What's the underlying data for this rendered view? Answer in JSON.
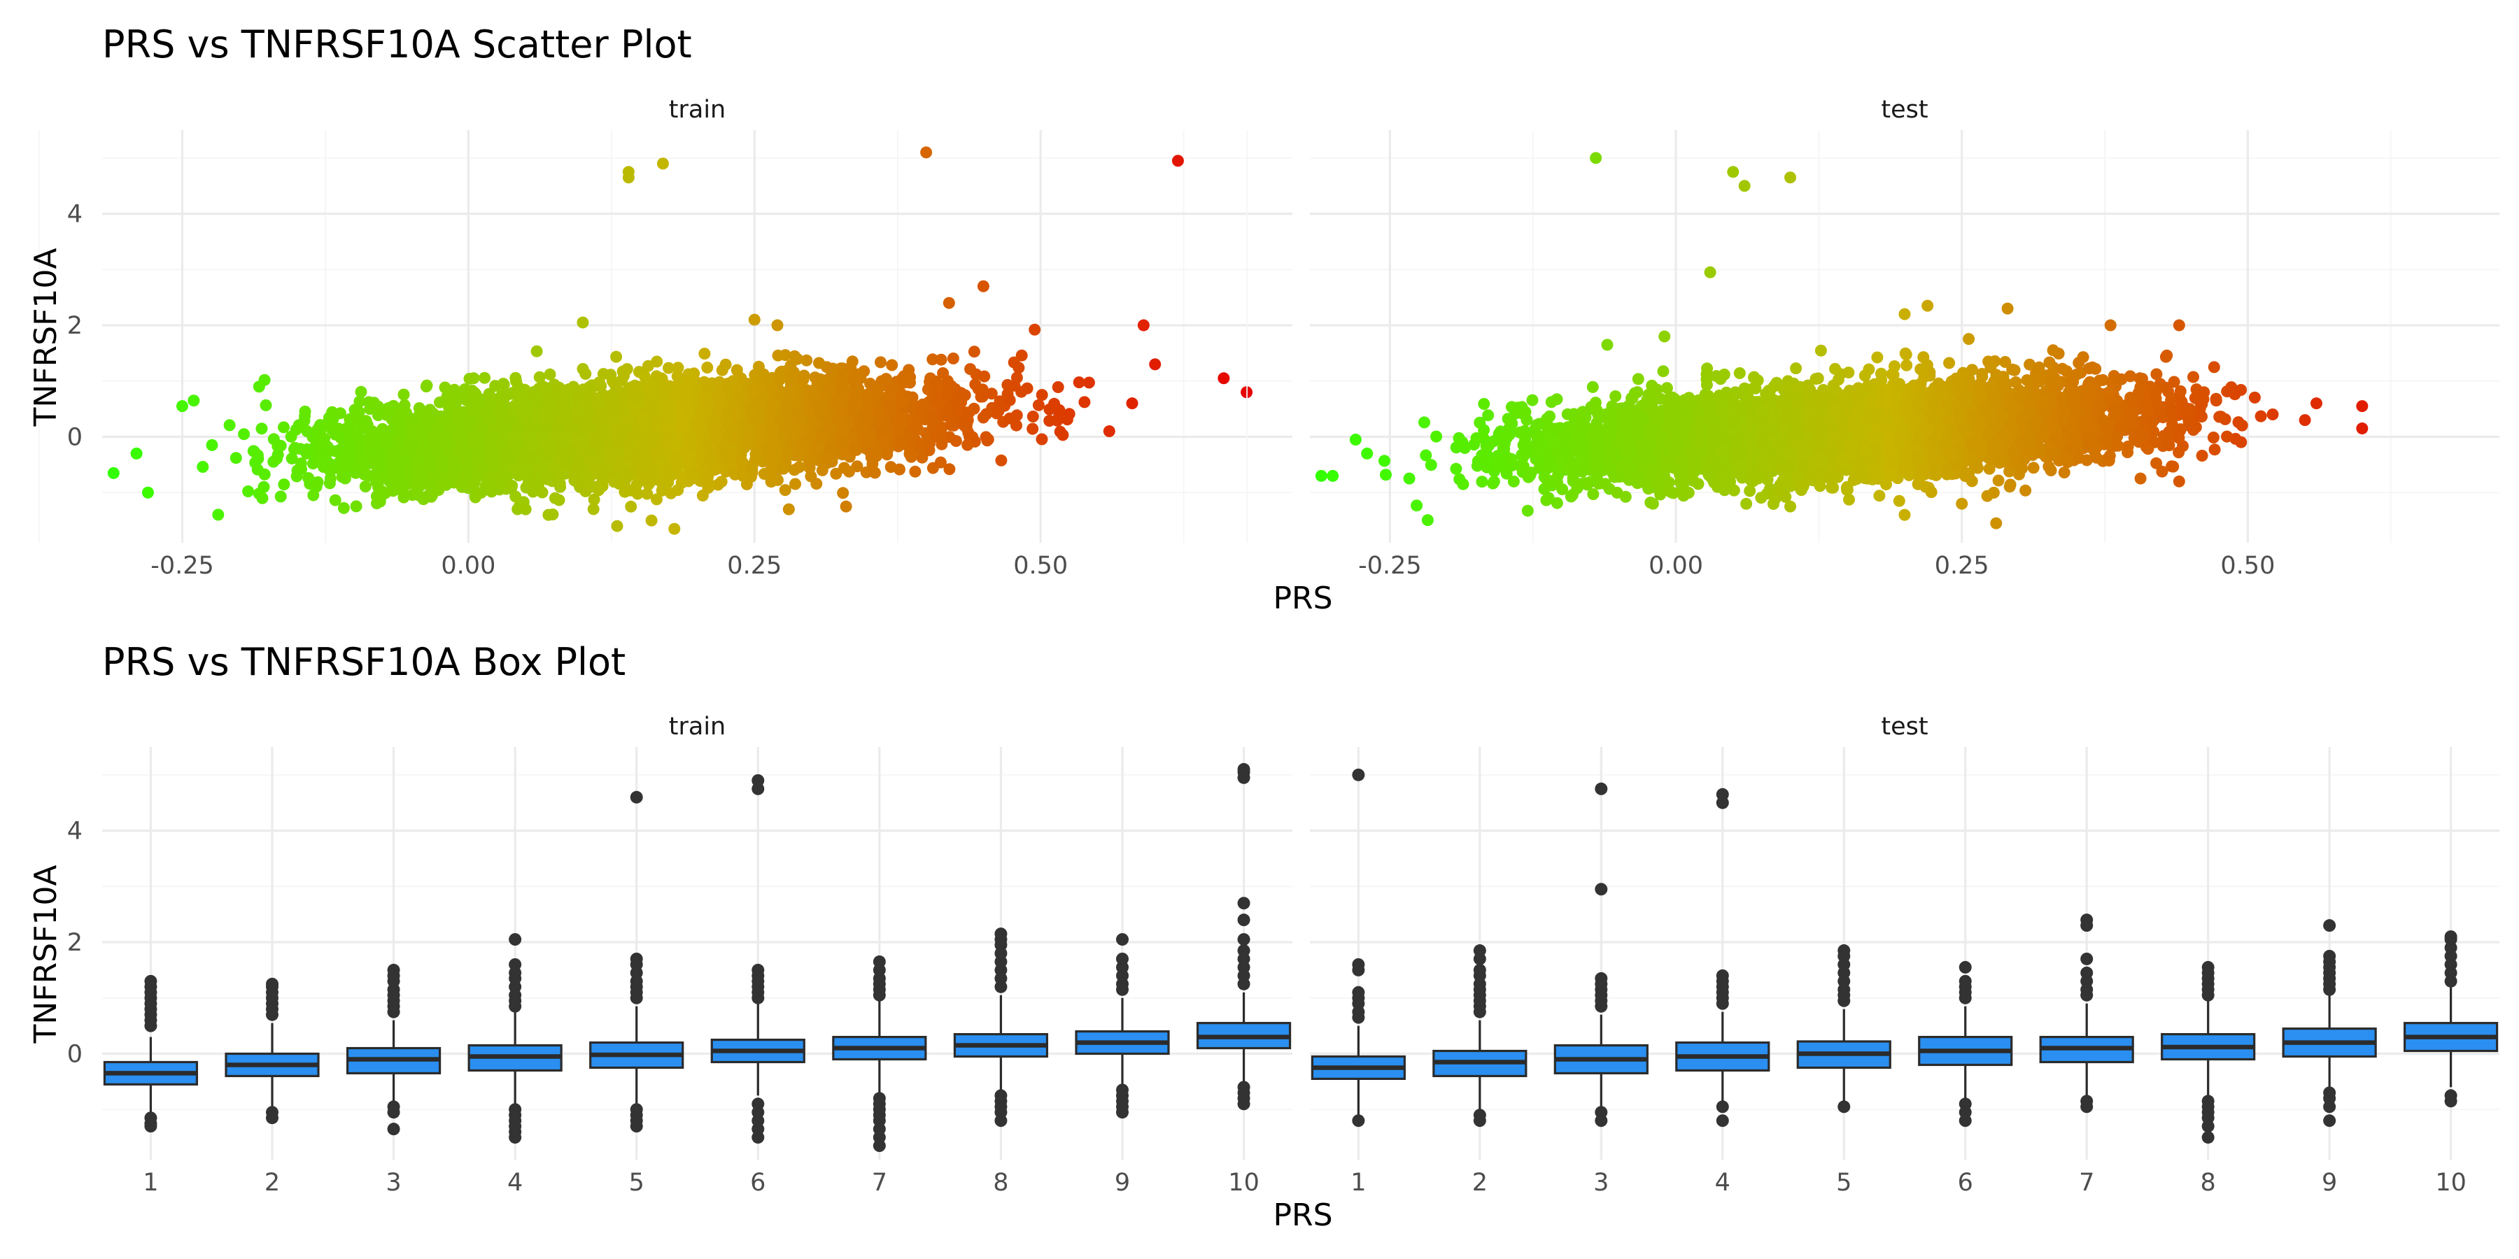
{
  "titles": {
    "scatter": "PRS vs TNFRSF10A Scatter Plot",
    "box": "PRS vs TNFRSF10A Box Plot"
  },
  "colors": {
    "gradient_low": "#33ff00",
    "gradient_mid": "#c8b400",
    "gradient_high": "#e60000",
    "box_fill": "#2a8ff0",
    "box_line": "#2b2b2b",
    "outlier": "#333333"
  },
  "chart_data": [
    {
      "type": "scatter",
      "title": "PRS vs TNFRSF10A Scatter Plot",
      "xlabel": "PRS",
      "ylabel": "TNFRSF10A",
      "xlim": [
        -0.32,
        0.72
      ],
      "ylim": [
        -1.9,
        5.5
      ],
      "x_ticks": [
        -0.25,
        0.0,
        0.25,
        0.5
      ],
      "x_tick_labels": [
        "-0.25",
        "0.00",
        "0.25",
        "0.50"
      ],
      "y_ticks": [
        0,
        2,
        4
      ],
      "y_tick_labels": [
        "0",
        "2",
        "4"
      ],
      "color_by": "PRS",
      "panels": [
        {
          "name": "train",
          "trend": {
            "slope": 1.45,
            "intercept": -0.12,
            "x_range": [
              -0.3,
              0.6
            ],
            "spread": 0.42
          },
          "points": [
            {
              "x": -0.31,
              "y": -0.65
            },
            {
              "x": -0.29,
              "y": -0.3
            },
            {
              "x": -0.28,
              "y": -1.0
            },
            {
              "x": -0.25,
              "y": 0.55
            },
            {
              "x": -0.24,
              "y": 0.65
            },
            {
              "x": -0.18,
              "y": -1.1
            },
            {
              "x": 0.14,
              "y": 4.65
            },
            {
              "x": 0.14,
              "y": 4.75
            },
            {
              "x": 0.17,
              "y": 4.9
            },
            {
              "x": 0.4,
              "y": 5.1
            },
            {
              "x": 0.62,
              "y": 4.95
            },
            {
              "x": 0.25,
              "y": 2.1
            },
            {
              "x": 0.27,
              "y": 2.0
            },
            {
              "x": 0.1,
              "y": 2.05
            },
            {
              "x": 0.45,
              "y": 2.7
            },
            {
              "x": 0.42,
              "y": 2.4
            },
            {
              "x": 0.59,
              "y": 2.0
            },
            {
              "x": 0.6,
              "y": 1.3
            },
            {
              "x": 0.66,
              "y": 1.05
            },
            {
              "x": 0.68,
              "y": 0.8
            },
            {
              "x": 0.18,
              "y": -1.65
            },
            {
              "x": 0.16,
              "y": -1.5
            },
            {
              "x": 0.13,
              "y": -1.6
            },
            {
              "x": 0.05,
              "y": -1.3
            },
            {
              "x": 0.33,
              "y": -1.25
            },
            {
              "x": 0.28,
              "y": -1.3
            },
            {
              "x": 0.07,
              "y": -1.4
            },
            {
              "x": 0.56,
              "y": 0.1
            },
            {
              "x": 0.58,
              "y": 0.6
            }
          ]
        },
        {
          "name": "test",
          "trend": {
            "slope": 1.15,
            "intercept": -0.1,
            "x_range": [
              -0.3,
              0.6
            ],
            "spread": 0.4
          },
          "points": [
            {
              "x": -0.31,
              "y": -0.7
            },
            {
              "x": -0.3,
              "y": -0.7
            },
            {
              "x": -0.28,
              "y": -0.05
            },
            {
              "x": -0.27,
              "y": -0.3
            },
            {
              "x": -0.07,
              "y": 5.0
            },
            {
              "x": 0.05,
              "y": 4.75
            },
            {
              "x": 0.06,
              "y": 4.5
            },
            {
              "x": 0.1,
              "y": 4.65
            },
            {
              "x": 0.03,
              "y": 2.95
            },
            {
              "x": 0.22,
              "y": 2.35
            },
            {
              "x": 0.2,
              "y": 2.2
            },
            {
              "x": 0.29,
              "y": 2.3
            },
            {
              "x": 0.38,
              "y": 2.0
            },
            {
              "x": 0.44,
              "y": 2.0
            },
            {
              "x": -0.06,
              "y": 1.65
            },
            {
              "x": -0.01,
              "y": 1.8
            },
            {
              "x": 0.6,
              "y": 0.55
            },
            {
              "x": 0.6,
              "y": 0.15
            },
            {
              "x": 0.56,
              "y": 0.6
            },
            {
              "x": 0.55,
              "y": 0.3
            },
            {
              "x": 0.28,
              "y": -1.55
            },
            {
              "x": 0.2,
              "y": -1.4
            },
            {
              "x": 0.25,
              "y": -1.2
            },
            {
              "x": -0.02,
              "y": -1.2
            },
            {
              "x": 0.1,
              "y": -1.25
            },
            {
              "x": 0.44,
              "y": -0.8
            }
          ]
        }
      ]
    },
    {
      "type": "box",
      "title": "PRS vs TNFRSF10A Box Plot",
      "xlabel": "PRS",
      "ylabel": "TNFRSF10A",
      "categories": [
        "1",
        "2",
        "3",
        "4",
        "5",
        "6",
        "7",
        "8",
        "9",
        "10"
      ],
      "ylim": [
        -1.9,
        5.5
      ],
      "y_ticks": [
        0,
        2,
        4
      ],
      "y_tick_labels": [
        "0",
        "2",
        "4"
      ],
      "panels": [
        {
          "name": "train",
          "boxes": [
            {
              "q1": -0.55,
              "median": -0.35,
              "q3": -0.15,
              "low": -1.05,
              "high": 0.3,
              "outliers": [
                -1.15,
                -1.25,
                -1.3,
                0.5,
                0.6,
                0.7,
                0.8,
                0.9,
                1.0,
                1.1,
                1.2,
                1.3
              ]
            },
            {
              "q1": -0.4,
              "median": -0.2,
              "q3": 0.0,
              "low": -1.0,
              "high": 0.55,
              "outliers": [
                -1.05,
                -1.15,
                0.7,
                0.8,
                0.9,
                1.0,
                1.1,
                1.2,
                1.25
              ]
            },
            {
              "q1": -0.35,
              "median": -0.1,
              "q3": 0.1,
              "low": -0.85,
              "high": 0.6,
              "outliers": [
                -0.95,
                -1.05,
                -1.35,
                0.75,
                0.85,
                0.95,
                1.05,
                1.15,
                1.3,
                1.4,
                1.5
              ]
            },
            {
              "q1": -0.3,
              "median": -0.05,
              "q3": 0.15,
              "low": -0.9,
              "high": 0.75,
              "outliers": [
                -1.0,
                -1.1,
                -1.2,
                -1.3,
                -1.4,
                -1.5,
                0.85,
                0.95,
                1.05,
                1.2,
                1.35,
                1.45,
                1.6,
                2.05
              ]
            },
            {
              "q1": -0.25,
              "median": -0.02,
              "q3": 0.2,
              "low": -0.9,
              "high": 0.85,
              "outliers": [
                -1.0,
                -1.1,
                -1.2,
                -1.3,
                1.0,
                1.1,
                1.2,
                1.3,
                1.45,
                1.6,
                1.7,
                4.6
              ]
            },
            {
              "q1": -0.15,
              "median": 0.05,
              "q3": 0.25,
              "low": -0.75,
              "high": 0.9,
              "outliers": [
                -0.9,
                -1.05,
                -1.2,
                -1.35,
                -1.5,
                1.0,
                1.1,
                1.2,
                1.3,
                1.4,
                1.5,
                4.75,
                4.9
              ]
            },
            {
              "q1": -0.1,
              "median": 0.1,
              "q3": 0.3,
              "low": -0.7,
              "high": 0.95,
              "outliers": [
                -0.8,
                -0.9,
                -1.0,
                -1.1,
                -1.2,
                -1.35,
                -1.5,
                -1.65,
                1.05,
                1.15,
                1.25,
                1.35,
                1.5,
                1.65
              ]
            },
            {
              "q1": -0.05,
              "median": 0.15,
              "q3": 0.35,
              "low": -0.65,
              "high": 1.05,
              "outliers": [
                -0.75,
                -0.85,
                -0.95,
                -1.05,
                -1.2,
                1.2,
                1.35,
                1.5,
                1.65,
                1.8,
                1.95,
                2.05,
                2.15
              ]
            },
            {
              "q1": 0.0,
              "median": 0.2,
              "q3": 0.4,
              "low": -0.55,
              "high": 1.0,
              "outliers": [
                -0.65,
                -0.75,
                -0.85,
                -0.95,
                -1.05,
                1.15,
                1.25,
                1.4,
                1.55,
                1.7,
                2.05
              ]
            },
            {
              "q1": 0.1,
              "median": 0.3,
              "q3": 0.55,
              "low": -0.5,
              "high": 1.1,
              "outliers": [
                -0.6,
                -0.7,
                -0.8,
                -0.9,
                1.25,
                1.4,
                1.55,
                1.7,
                1.85,
                2.05,
                2.4,
                2.7,
                4.95,
                5.05,
                5.1
              ]
            }
          ]
        },
        {
          "name": "test",
          "boxes": [
            {
              "q1": -0.45,
              "median": -0.25,
              "q3": -0.05,
              "low": -1.1,
              "high": 0.5,
              "outliers": [
                -1.2,
                0.65,
                0.75,
                0.9,
                1.0,
                1.1,
                1.5,
                1.6,
                5.0
              ]
            },
            {
              "q1": -0.4,
              "median": -0.15,
              "q3": 0.05,
              "low": -1.0,
              "high": 0.6,
              "outliers": [
                -1.1,
                -1.2,
                0.75,
                0.85,
                0.95,
                1.05,
                1.15,
                1.25,
                1.4,
                1.5,
                1.7,
                1.85
              ]
            },
            {
              "q1": -0.35,
              "median": -0.1,
              "q3": 0.15,
              "low": -0.95,
              "high": 0.7,
              "outliers": [
                -1.05,
                -1.2,
                0.85,
                0.95,
                1.05,
                1.15,
                1.25,
                1.35,
                2.95,
                4.75
              ]
            },
            {
              "q1": -0.3,
              "median": -0.05,
              "q3": 0.2,
              "low": -0.9,
              "high": 0.75,
              "outliers": [
                -0.95,
                -1.2,
                0.9,
                1.0,
                1.1,
                1.2,
                1.3,
                1.4,
                4.5,
                4.65
              ]
            },
            {
              "q1": -0.25,
              "median": 0.0,
              "q3": 0.22,
              "low": -0.85,
              "high": 0.8,
              "outliers": [
                -0.95,
                0.95,
                1.05,
                1.15,
                1.3,
                1.45,
                1.6,
                1.75,
                1.85
              ]
            },
            {
              "q1": -0.2,
              "median": 0.05,
              "q3": 0.3,
              "low": -0.8,
              "high": 0.85,
              "outliers": [
                -0.9,
                -1.05,
                -1.2,
                1.0,
                1.1,
                1.2,
                1.3,
                1.55
              ]
            },
            {
              "q1": -0.15,
              "median": 0.1,
              "q3": 0.3,
              "low": -0.8,
              "high": 0.9,
              "outliers": [
                -0.85,
                -0.95,
                1.05,
                1.15,
                1.3,
                1.45,
                1.7,
                2.3,
                2.4
              ]
            },
            {
              "q1": -0.1,
              "median": 0.12,
              "q3": 0.35,
              "low": -0.75,
              "high": 0.95,
              "outliers": [
                -0.85,
                -0.95,
                -1.05,
                -1.15,
                -1.3,
                -1.5,
                1.05,
                1.15,
                1.25,
                1.35,
                1.45,
                1.55
              ]
            },
            {
              "q1": -0.05,
              "median": 0.2,
              "q3": 0.45,
              "low": -0.6,
              "high": 1.05,
              "outliers": [
                -0.7,
                -0.8,
                -0.95,
                -1.2,
                1.15,
                1.25,
                1.35,
                1.45,
                1.55,
                1.65,
                1.75,
                2.3
              ]
            },
            {
              "q1": 0.05,
              "median": 0.3,
              "q3": 0.55,
              "low": -0.6,
              "high": 1.2,
              "outliers": [
                -0.75,
                -0.85,
                1.3,
                1.45,
                1.6,
                1.75,
                1.9,
                2.05,
                2.1
              ]
            }
          ]
        }
      ]
    }
  ]
}
